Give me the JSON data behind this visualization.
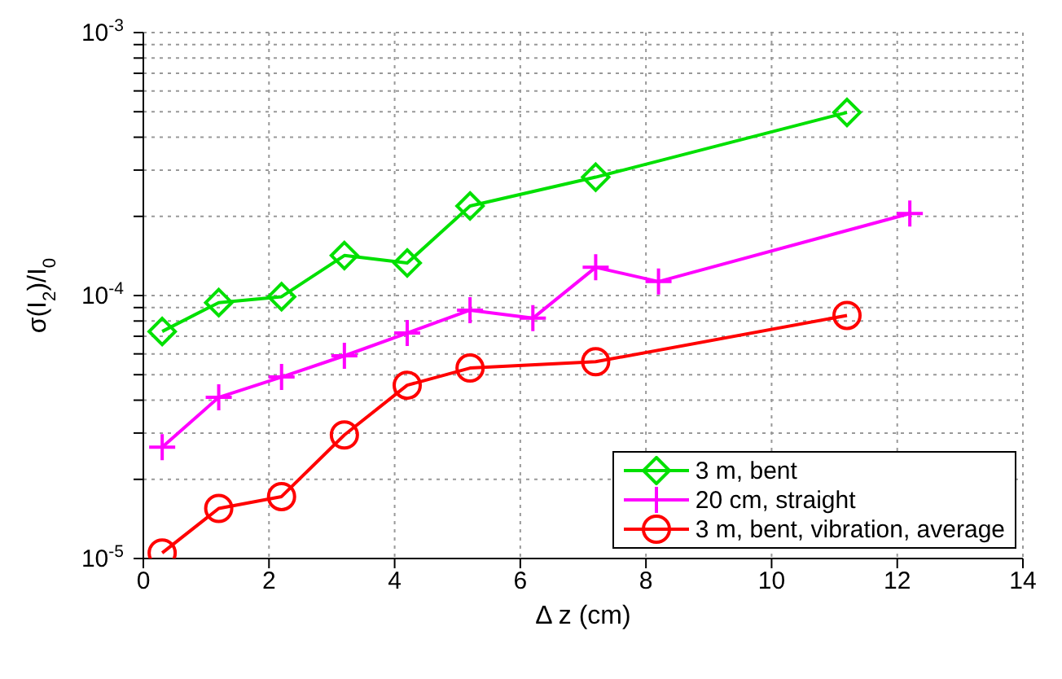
{
  "chart_data": {
    "type": "line",
    "xlabel": "Δ z (cm)",
    "ylabel": "σ(I$_{2}$)/I$_{0}$",
    "xlim": [
      0,
      14
    ],
    "xticks": [
      0,
      2,
      4,
      6,
      8,
      10,
      12,
      14
    ],
    "ylim": [
      1e-05,
      0.001
    ],
    "log": true,
    "yticks": [
      {
        "value": 1e-05,
        "label": "10$^{-5}$"
      },
      {
        "value": 2e-05,
        "label": null
      },
      {
        "value": 3e-05,
        "label": null
      },
      {
        "value": 4e-05,
        "label": null
      },
      {
        "value": 5e-05,
        "label": null
      },
      {
        "value": 6e-05,
        "label": null
      },
      {
        "value": 7e-05,
        "label": null
      },
      {
        "value": 8e-05,
        "label": null
      },
      {
        "value": 9e-05,
        "label": null
      },
      {
        "value": 0.0001,
        "label": "10$^{-4}$"
      },
      {
        "value": 0.0002,
        "label": null
      },
      {
        "value": 0.0003,
        "label": null
      },
      {
        "value": 0.0004,
        "label": null
      },
      {
        "value": 0.0005,
        "label": null
      },
      {
        "value": 0.0006,
        "label": null
      },
      {
        "value": 0.0007,
        "label": null
      },
      {
        "value": 0.0008,
        "label": null
      },
      {
        "value": 0.0009,
        "label": null
      },
      {
        "value": 0.001,
        "label": "10$^{-3}$"
      }
    ],
    "grid": true,
    "legend": "bottom right",
    "series": [
      {
        "name": "3 m, bent",
        "color": "#00e000",
        "marker": "diamond",
        "x": [
          0.3,
          1.2,
          2.2,
          3.2,
          4.2,
          5.2,
          7.2,
          11.2
        ],
        "values": [
          7.3e-05,
          9.4e-05,
          9.9e-05,
          0.000142,
          0.000133,
          0.000219,
          0.000282,
          0.000497
        ]
      },
      {
        "name": "20 cm, straight",
        "color": "#ff00ff",
        "marker": "cross",
        "x": [
          0.3,
          1.2,
          2.2,
          3.2,
          4.2,
          5.2,
          6.2,
          7.2,
          8.2,
          12.2
        ],
        "values": [
          2.65e-05,
          4.1e-05,
          4.9e-05,
          5.9e-05,
          7.2e-05,
          8.8e-05,
          8.2e-05,
          0.000128,
          0.000113,
          0.000205
        ]
      },
      {
        "name": "3 m, bent, vibration, average",
        "color": "#ff0000",
        "marker": "circle",
        "x": [
          0.3,
          1.2,
          2.2,
          3.2,
          4.2,
          5.2,
          7.2,
          11.2
        ],
        "values": [
          1.05e-05,
          1.55e-05,
          1.72e-05,
          2.95e-05,
          4.56e-05,
          5.3e-05,
          5.6e-05,
          8.4e-05
        ]
      }
    ]
  }
}
